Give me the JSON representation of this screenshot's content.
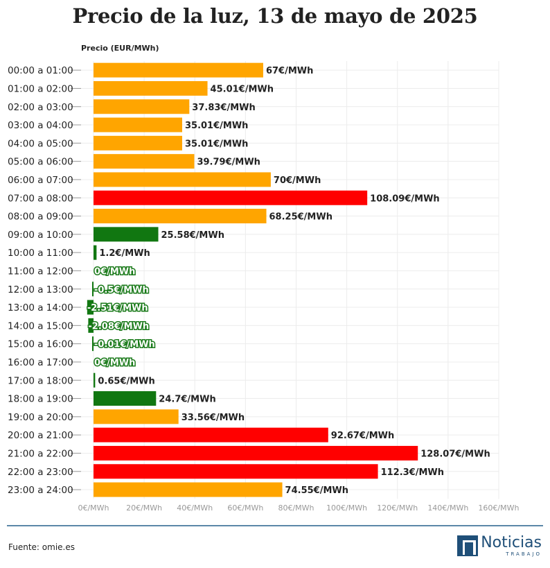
{
  "chart_data": {
    "type": "bar",
    "orientation": "horizontal",
    "title": "Precio de la luz, 13 de mayo de 2025",
    "ylabel": "Precio (EUR/MWh)",
    "xlim": [
      0,
      160
    ],
    "xticks": [
      "0€/MWh",
      "20€/MWh",
      "40€/MWh",
      "60€/MWh",
      "80€/MWh",
      "100€/MWh",
      "120€/MWh",
      "140€/MWh",
      "160€/MWh"
    ],
    "xtick_values": [
      0,
      20,
      40,
      60,
      80,
      100,
      120,
      140,
      160
    ],
    "categories": [
      "00:00 a 01:00",
      "01:00 a 02:00",
      "02:00 a 03:00",
      "03:00 a 04:00",
      "04:00 a 05:00",
      "05:00 a 06:00",
      "06:00 a 07:00",
      "07:00 a 08:00",
      "08:00 a 09:00",
      "09:00 a 10:00",
      "10:00 a 11:00",
      "11:00 a 12:00",
      "12:00 a 13:00",
      "13:00 a 14:00",
      "14:00 a 15:00",
      "15:00 a 16:00",
      "16:00 a 17:00",
      "17:00 a 18:00",
      "18:00 a 19:00",
      "19:00 a 20:00",
      "20:00 a 21:00",
      "21:00 a 22:00",
      "22:00 a 23:00",
      "23:00 a 24:00"
    ],
    "values": [
      67,
      45.01,
      37.83,
      35.01,
      35.01,
      39.79,
      70,
      108.09,
      68.25,
      25.58,
      1.2,
      0,
      -0.5,
      -2.51,
      -2.08,
      -0.01,
      0,
      0.65,
      24.7,
      33.56,
      92.67,
      128.07,
      112.3,
      74.55
    ],
    "value_labels": [
      "67€/MWh",
      "45.01€/MWh",
      "37.83€/MWh",
      "35.01€/MWh",
      "35.01€/MWh",
      "39.79€/MWh",
      "70€/MWh",
      "108.09€/MWh",
      "68.25€/MWh",
      "25.58€/MWh",
      "1.2€/MWh",
      "0€/MWh",
      "-0.5€/MWh",
      "-2.51€/MWh",
      "-2.08€/MWh",
      "-0.01€/MWh",
      "0€/MWh",
      "0.65€/MWh",
      "24.7€/MWh",
      "33.56€/MWh",
      "92.67€/MWh",
      "128.07€/MWh",
      "112.3€/MWh",
      "74.55€/MWh"
    ],
    "bar_colors": [
      "orange",
      "orange",
      "orange",
      "orange",
      "orange",
      "orange",
      "orange",
      "red",
      "orange",
      "green",
      "green",
      "green",
      "green",
      "green",
      "green",
      "green",
      "green",
      "green",
      "green",
      "orange",
      "red",
      "red",
      "red",
      "orange"
    ]
  },
  "colors": {
    "orange": "#ffa500",
    "red": "#ff0000",
    "green": "#117711",
    "grid": "#ececec",
    "divider": "#5b87a8",
    "brand": "#1f4f78"
  },
  "footer": {
    "source": "Fuente: omie.es"
  },
  "brand": {
    "name": "Noticias",
    "sub": "TRABAJO",
    "icon": "noticias-trabajo-logo-icon"
  }
}
